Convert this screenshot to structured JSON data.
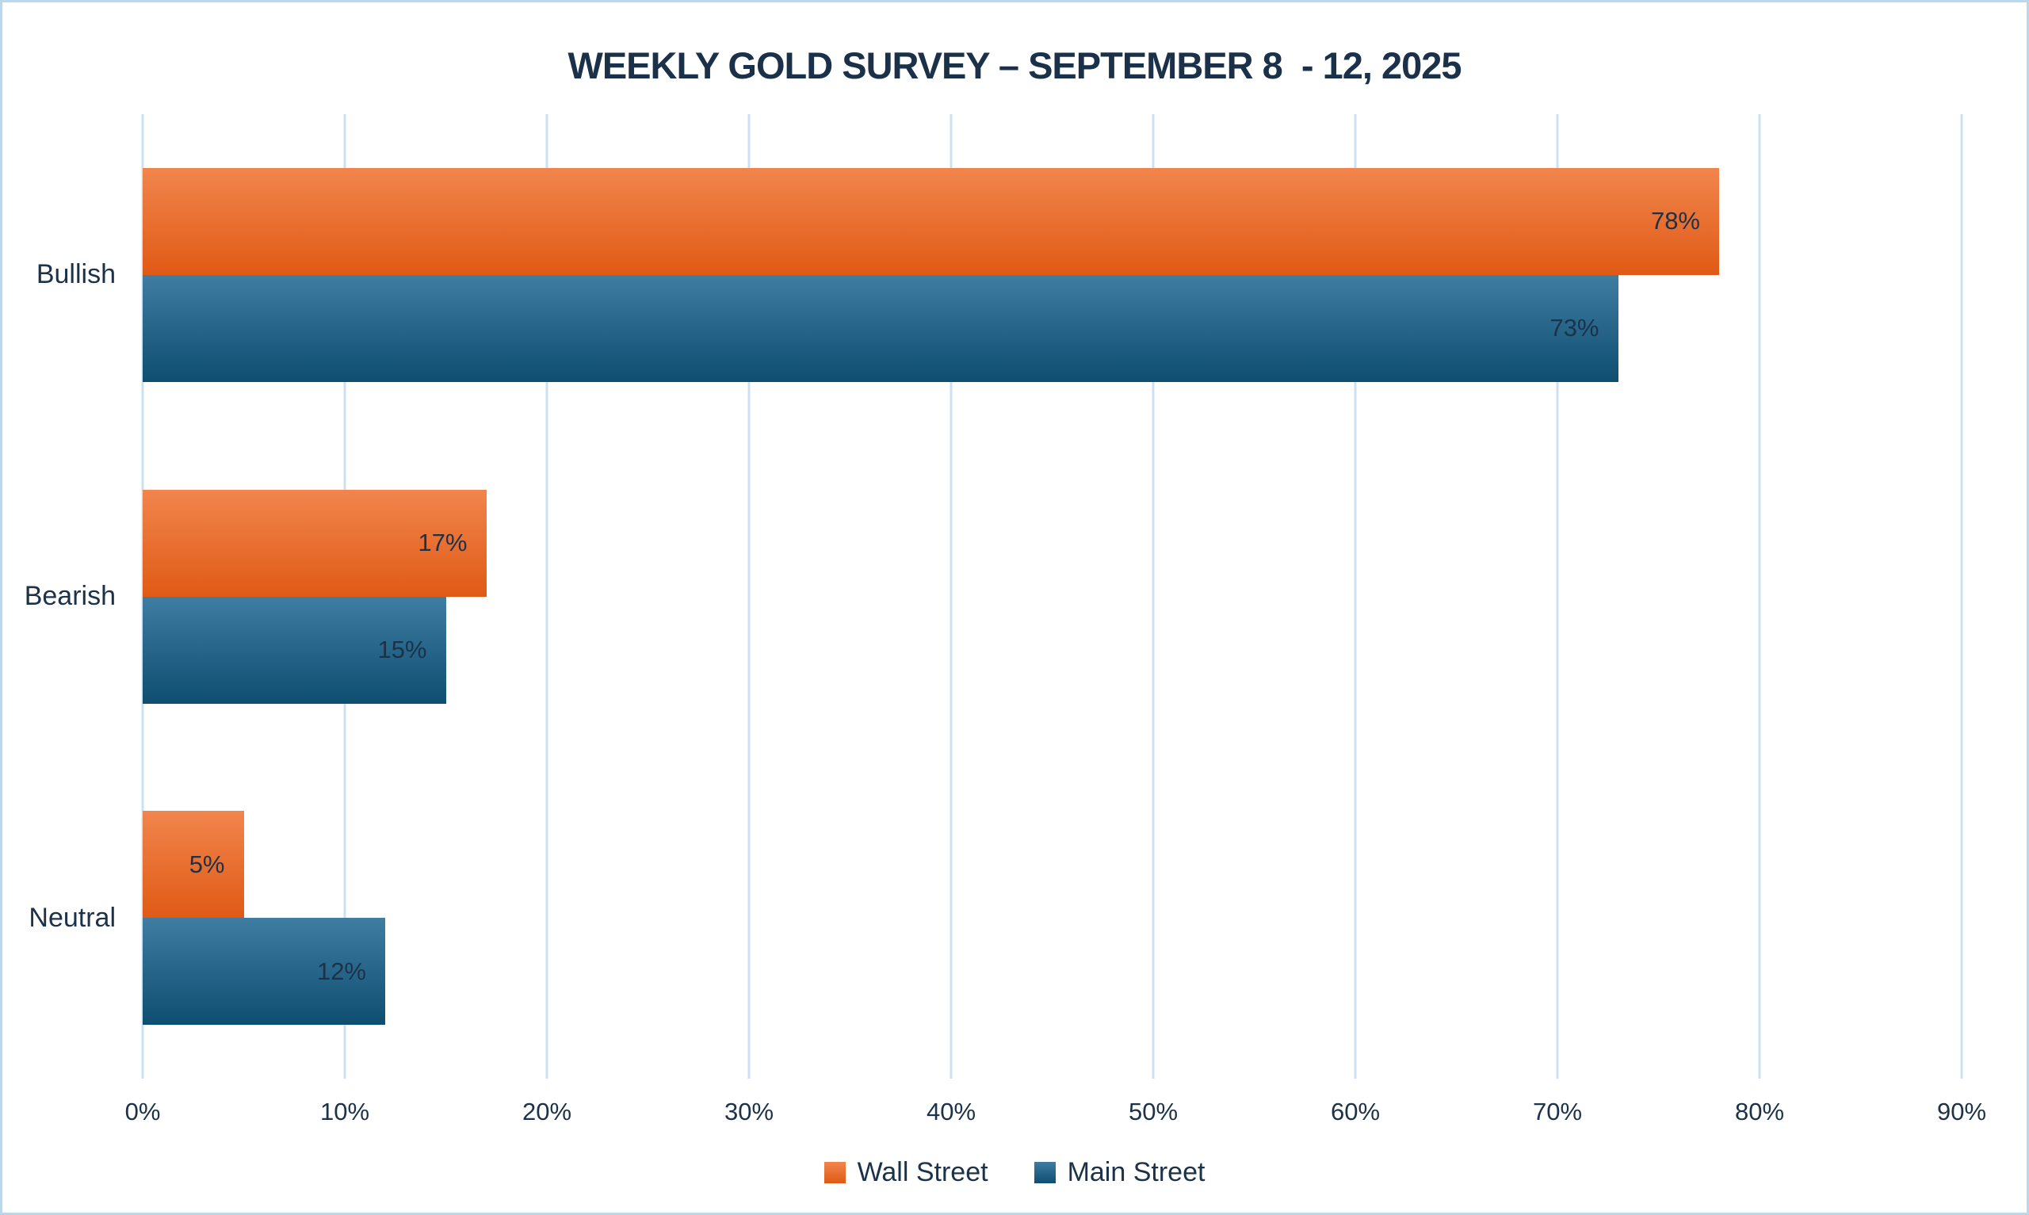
{
  "title": "WEEKLY GOLD SURVEY – SEPTEMBER 8  - 12, 2025",
  "chart_data": {
    "type": "bar",
    "orientation": "horizontal",
    "title": "WEEKLY GOLD SURVEY – SEPTEMBER 8  - 12, 2025",
    "categories": [
      "Bullish",
      "Bearish",
      "Neutral"
    ],
    "series": [
      {
        "name": "Wall Street",
        "values": [
          78,
          17,
          5
        ],
        "color_top": "#F1854D",
        "color_bottom": "#E05A15"
      },
      {
        "name": "Main Street",
        "values": [
          73,
          15,
          12
        ],
        "color_top": "#3F7DA2",
        "color_bottom": "#0E4E70"
      }
    ],
    "value_suffix": "%",
    "data_labels": [
      "78%",
      "73%",
      "17%",
      "15%",
      "5%",
      "12%"
    ],
    "xlim": [
      0,
      90
    ],
    "x_ticks": [
      "0%",
      "10%",
      "20%",
      "30%",
      "40%",
      "50%",
      "60%",
      "70%",
      "80%",
      "90%"
    ],
    "grid": true,
    "gridline_color": "#CBE0F2",
    "legend_position": "bottom",
    "legend": [
      "Wall Street",
      "Main Street"
    ]
  },
  "colors": {
    "background": "#FFFFFF",
    "frame_border": "#BCD6EA",
    "title_text": "#1B3049",
    "axis_text": "#1C3248",
    "wall_street_top": "#F1854D",
    "wall_street_bottom": "#E05A15",
    "main_street_top": "#3F7DA2",
    "main_street_bottom": "#0E4E70"
  }
}
